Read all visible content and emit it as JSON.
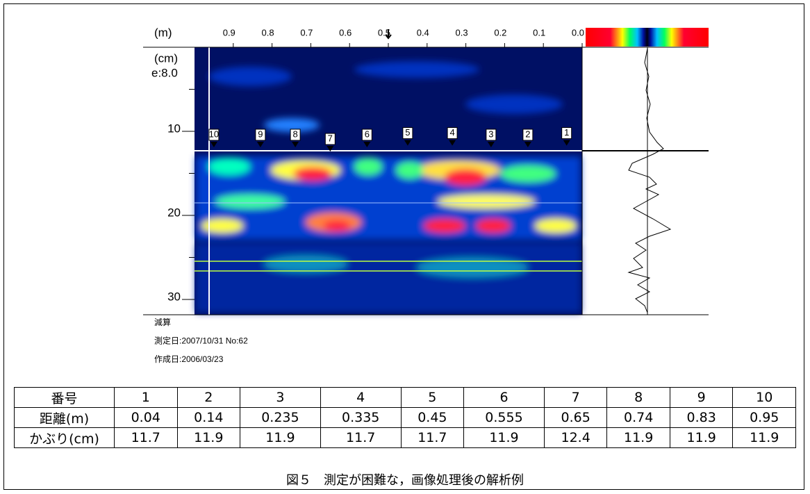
{
  "figure": {
    "x_unit": "(m)",
    "y_unit": "(cm)",
    "y_note": "e:8.0",
    "x_ticks": [
      0.9,
      0.8,
      0.7,
      0.6,
      0.5,
      0.4,
      0.3,
      0.2,
      0.1,
      {
        "value": 0,
        "label": "0.0"
      }
    ],
    "y_ticks": [
      10,
      20,
      30
    ],
    "notes": [
      "減算",
      "測定日:2007/10/31 No:62",
      "作成日:2006/03/23"
    ]
  },
  "table": {
    "rows": [
      [
        "番号",
        "1",
        "2",
        "3",
        "4",
        "5",
        "6",
        "7",
        "8",
        "9",
        "10"
      ],
      [
        "距離(m)",
        "0.04",
        "0.14",
        "0.235",
        "0.335",
        "0.45",
        "0.555",
        "0.65",
        "0.74",
        "0.83",
        "0.95"
      ],
      [
        "かぶり(cm)",
        "11.7",
        "11.9",
        "11.9",
        "11.7",
        "11.7",
        "11.9",
        "12.4",
        "11.9",
        "11.9",
        "11.9"
      ]
    ]
  },
  "caption": "図５　測定が困難な，画像処理後の解析例"
}
